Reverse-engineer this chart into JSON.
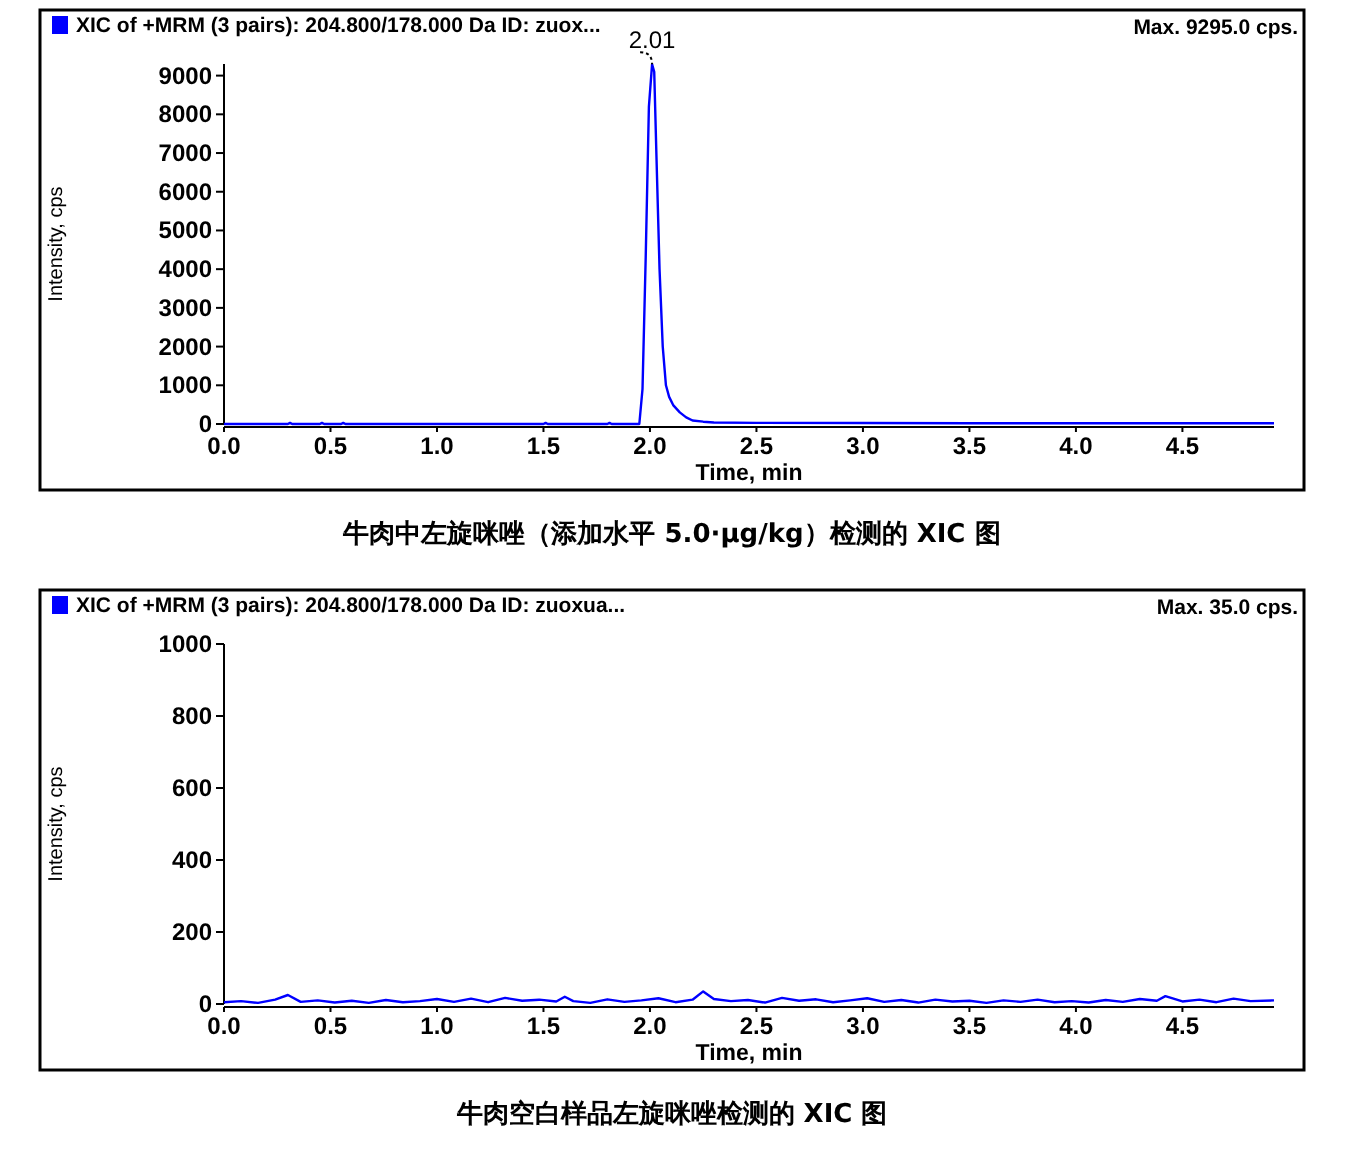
{
  "chart_data": [
    {
      "type": "line",
      "xlabel": "Time, min",
      "ylabel": "Intensity, cps",
      "legend": "top left",
      "grid": false,
      "marker": "none",
      "line_style": "solid",
      "xlim": [
        0,
        4.93
      ],
      "ylim": [
        0,
        9300
      ],
      "xticks": [
        {
          "value": 0,
          "label": "0.0"
        },
        0.5,
        {
          "value": 1,
          "label": "1.0"
        },
        1.5,
        {
          "value": 2,
          "label": "2.0"
        },
        2.5,
        {
          "value": 3,
          "label": "3.0"
        },
        3.5,
        {
          "value": 4,
          "label": "4.0"
        },
        4.5
      ],
      "yticks": [
        0,
        1000,
        2000,
        3000,
        4000,
        5000,
        6000,
        7000,
        8000,
        9000
      ],
      "series": [
        {
          "name": "XIC of +MRM (3 pairs): 204.800/178.000 Da ID: zuox...",
          "color": "#0000ff",
          "x": [
            0,
            0.3,
            0.31,
            0.32,
            0.45,
            0.46,
            0.47,
            0.55,
            0.56,
            0.57,
            1.5,
            1.51,
            1.52,
            1.8,
            1.81,
            1.82,
            1.95,
            1.965,
            1.98,
            1.995,
            2.01,
            2.02,
            2.03,
            2.045,
            2.06,
            2.075,
            2.09,
            2.11,
            2.14,
            2.17,
            2.2,
            2.25,
            2.3,
            2.5,
            3.0,
            3.5,
            4.0,
            4.5,
            4.93
          ],
          "values": [
            0,
            0,
            30,
            0,
            0,
            30,
            0,
            0,
            30,
            0,
            0,
            30,
            0,
            0,
            30,
            0,
            0,
            900,
            4300,
            8200,
            9295,
            9100,
            7000,
            4000,
            2000,
            1000,
            700,
            480,
            300,
            170,
            90,
            60,
            40,
            30,
            25,
            20,
            20,
            20,
            20
          ]
        }
      ],
      "annotations": [
        {
          "text": "2.01",
          "x": 2.01,
          "y": 9295
        },
        "Max. 9295.0 cps.",
        "牛肉中左旋咪唑（添加水平 5.0·μg/kg）检测的 XIC 图"
      ]
    },
    {
      "type": "line",
      "xlabel": "Time, min",
      "ylabel": "Intensity, cps",
      "legend": "top left",
      "grid": false,
      "marker": "none",
      "line_style": "solid",
      "xlim": [
        0,
        4.93
      ],
      "ylim": [
        0,
        1000
      ],
      "xticks": [
        {
          "value": 0,
          "label": "0.0"
        },
        0.5,
        {
          "value": 1,
          "label": "1.0"
        },
        1.5,
        {
          "value": 2,
          "label": "2.0"
        },
        2.5,
        {
          "value": 3,
          "label": "3.0"
        },
        3.5,
        {
          "value": 4,
          "label": "4.0"
        },
        4.5
      ],
      "yticks": [
        0,
        200,
        400,
        600,
        800,
        1000
      ],
      "series": [
        {
          "name": "XIC of +MRM (3 pairs): 204.800/178.000 Da ID: zuoxua...",
          "color": "#0000ff",
          "x": [
            0,
            0.08,
            0.16,
            0.24,
            0.3,
            0.36,
            0.44,
            0.52,
            0.6,
            0.68,
            0.76,
            0.84,
            0.92,
            1.0,
            1.08,
            1.16,
            1.24,
            1.32,
            1.4,
            1.48,
            1.56,
            1.6,
            1.64,
            1.72,
            1.8,
            1.88,
            1.96,
            2.04,
            2.12,
            2.2,
            2.25,
            2.3,
            2.38,
            2.46,
            2.54,
            2.62,
            2.7,
            2.78,
            2.86,
            2.94,
            3.02,
            3.1,
            3.18,
            3.26,
            3.34,
            3.42,
            3.5,
            3.58,
            3.66,
            3.74,
            3.82,
            3.9,
            3.98,
            4.06,
            4.14,
            4.22,
            4.3,
            4.38,
            4.42,
            4.5,
            4.58,
            4.66,
            4.74,
            4.82,
            4.93
          ],
          "values": [
            5,
            8,
            3,
            12,
            25,
            6,
            10,
            4,
            9,
            3,
            11,
            5,
            8,
            14,
            6,
            15,
            5,
            17,
            9,
            12,
            7,
            20,
            8,
            3,
            13,
            6,
            10,
            16,
            5,
            12,
            35,
            14,
            8,
            11,
            4,
            17,
            9,
            13,
            5,
            10,
            16,
            6,
            11,
            4,
            12,
            7,
            9,
            3,
            10,
            6,
            12,
            5,
            8,
            4,
            11,
            6,
            14,
            9,
            22,
            7,
            12,
            5,
            15,
            8,
            10
          ]
        }
      ],
      "annotations": [
        "Max. 35.0 cps.",
        "牛肉空白样品左旋咪唑检测的 XIC 图"
      ]
    }
  ]
}
